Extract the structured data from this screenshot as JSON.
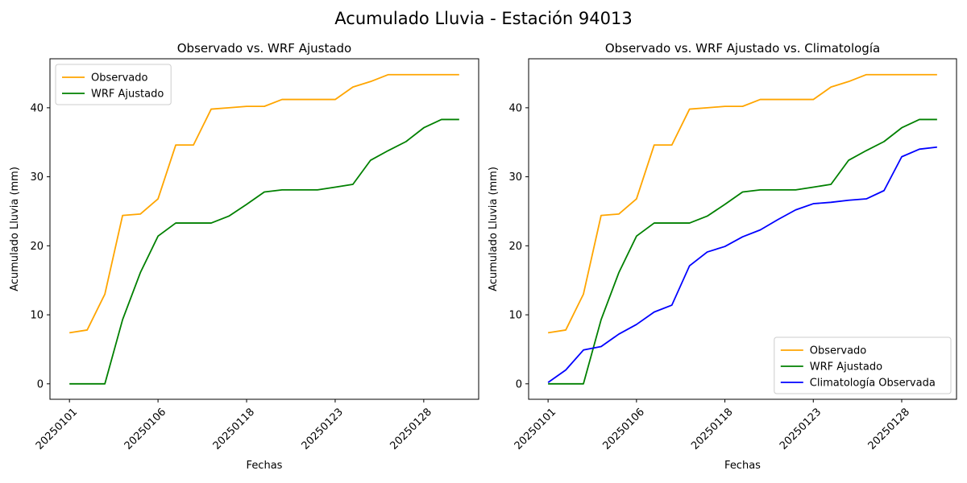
{
  "suptitle": "Acumulado Lluvia - Estación 94013",
  "colors": {
    "observado": "#ffa500",
    "wrf": "#008000",
    "clima": "#0000ff"
  },
  "chart_data": [
    {
      "type": "line",
      "title": "Observado vs. WRF Ajustado",
      "xlabel": "Fechas",
      "ylabel": "Acumulado Lluvia (mm)",
      "x_ticks": [
        "20250101",
        "20250106",
        "20250118",
        "20250123",
        "20250128"
      ],
      "x_tick_positions": [
        0,
        5,
        10,
        15,
        20
      ],
      "y_ticks": [
        0,
        10,
        20,
        30,
        40
      ],
      "ylim": [
        -2.24,
        47.1
      ],
      "xlim": [
        -1.1,
        23.1
      ],
      "legend_position": "upper left",
      "grid": false,
      "series": [
        {
          "name": "Observado",
          "color_key": "observado",
          "values": [
            7.4,
            7.8,
            13.0,
            24.4,
            24.6,
            26.8,
            34.6,
            34.6,
            39.8,
            40.0,
            40.2,
            40.2,
            41.2,
            41.2,
            41.2,
            41.2,
            43.0,
            43.8,
            44.8,
            44.8,
            44.8,
            44.8,
            44.8
          ]
        },
        {
          "name": "WRF Ajustado",
          "color_key": "wrf",
          "values": [
            0.0,
            0.0,
            0.0,
            9.3,
            16.1,
            21.4,
            23.3,
            23.3,
            23.3,
            24.3,
            26.0,
            27.8,
            28.1,
            28.1,
            28.1,
            28.5,
            28.9,
            32.4,
            33.8,
            35.1,
            37.1,
            38.3,
            38.3
          ]
        }
      ]
    },
    {
      "type": "line",
      "title": "Observado vs. WRF Ajustado vs. Climatología",
      "xlabel": "Fechas",
      "ylabel": "Acumulado Lluvia (mm)",
      "x_ticks": [
        "20250101",
        "20250106",
        "20250118",
        "20250123",
        "20250128"
      ],
      "x_tick_positions": [
        0,
        5,
        10,
        15,
        20
      ],
      "y_ticks": [
        0,
        10,
        20,
        30,
        40
      ],
      "ylim": [
        -2.24,
        47.1
      ],
      "xlim": [
        -1.1,
        23.1
      ],
      "legend_position": "lower right",
      "grid": false,
      "series": [
        {
          "name": "Observado",
          "color_key": "observado",
          "values": [
            7.4,
            7.8,
            13.0,
            24.4,
            24.6,
            26.8,
            34.6,
            34.6,
            39.8,
            40.0,
            40.2,
            40.2,
            41.2,
            41.2,
            41.2,
            41.2,
            43.0,
            43.8,
            44.8,
            44.8,
            44.8,
            44.8,
            44.8
          ]
        },
        {
          "name": "WRF Ajustado",
          "color_key": "wrf",
          "values": [
            0.0,
            0.0,
            0.0,
            9.3,
            16.1,
            21.4,
            23.3,
            23.3,
            23.3,
            24.3,
            26.0,
            27.8,
            28.1,
            28.1,
            28.1,
            28.5,
            28.9,
            32.4,
            33.8,
            35.1,
            37.1,
            38.3,
            38.3
          ]
        },
        {
          "name": "Climatología Observada",
          "color_key": "clima",
          "values": [
            0.2,
            2.0,
            4.9,
            5.4,
            7.2,
            8.6,
            10.4,
            11.4,
            17.1,
            19.1,
            19.9,
            21.3,
            22.3,
            23.8,
            25.2,
            26.1,
            26.3,
            26.6,
            26.8,
            28.0,
            32.9,
            34.0,
            34.3
          ]
        }
      ]
    }
  ]
}
